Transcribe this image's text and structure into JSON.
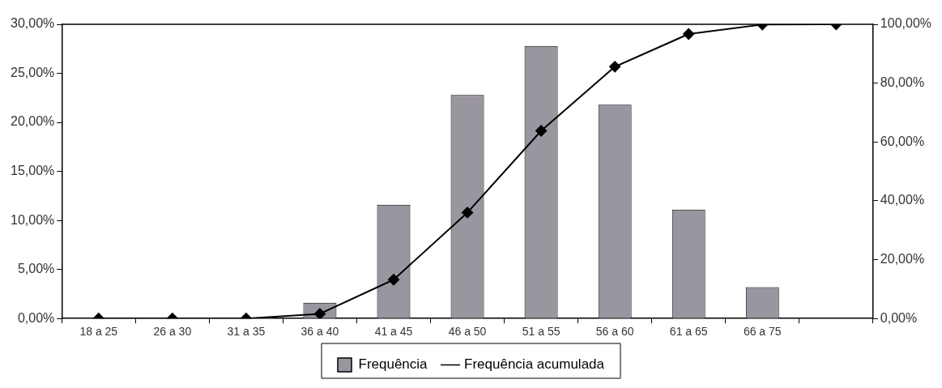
{
  "chart_data": {
    "type": "bar",
    "categories": [
      "18 a 25",
      "26 a 30",
      "31 a 35",
      "36 a 40",
      "41 a 45",
      "46 a 50",
      "51 a 55",
      "56 a 60",
      "61 a 65",
      "66 a 75",
      null
    ],
    "series": [
      {
        "name": "Frequência",
        "color": "#9a96a0",
        "values": [
          0,
          0,
          0,
          1.6,
          11.6,
          22.8,
          27.8,
          21.8,
          11.1,
          3.2,
          null
        ]
      },
      {
        "name": "Frequência acumulada",
        "type": "line",
        "axis": "y2",
        "color": "#000000",
        "marker": "diamond",
        "values": [
          0,
          0,
          0,
          1.6,
          13.2,
          36,
          63.8,
          85.6,
          96.7,
          99.9,
          100
        ]
      }
    ],
    "ylim": [
      0,
      30
    ],
    "yticks": [
      {
        "value": 0,
        "label": "0,00%"
      },
      {
        "value": 5,
        "label": "5,00%"
      },
      {
        "value": 10,
        "label": "10,00%"
      },
      {
        "value": 15,
        "label": "15,00%"
      },
      {
        "value": 20,
        "label": "20,00%"
      },
      {
        "value": 25,
        "label": "25,00%"
      },
      {
        "value": 30,
        "label": "30,00%"
      }
    ],
    "y2lim": [
      0,
      100
    ],
    "y2ticks": [
      {
        "value": 0,
        "label": "0,00%"
      },
      {
        "value": 20,
        "label": "20,00%"
      },
      {
        "value": 40,
        "label": "40,00%"
      },
      {
        "value": 60,
        "label": "60,00%"
      },
      {
        "value": 80,
        "label": "80,00%"
      },
      {
        "value": 100,
        "label": "100,00%"
      }
    ],
    "grid": false,
    "legend": "bottom"
  }
}
